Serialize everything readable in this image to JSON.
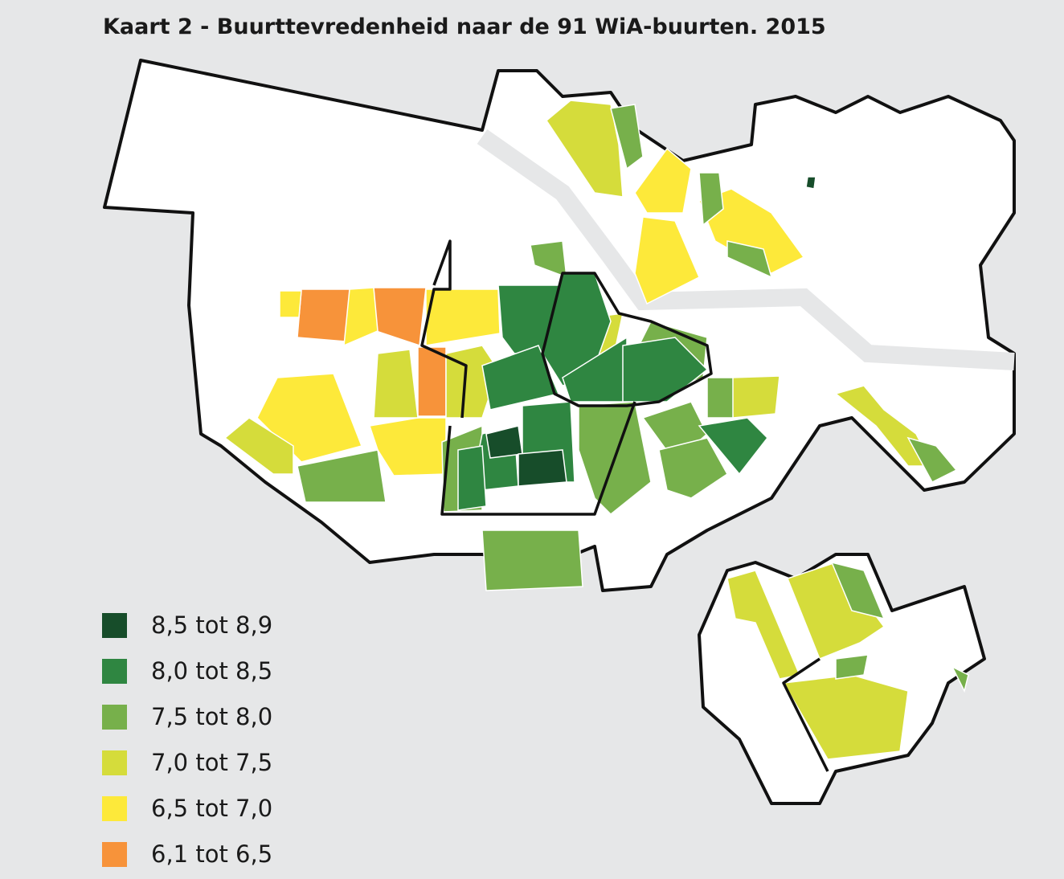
{
  "title": "Kaart 2 - Buurttevredenheid naar de 91 WiA-buurten. 2015",
  "legend": {
    "items": [
      {
        "label": "8,5 tot 8,9",
        "color": "#174d2a"
      },
      {
        "label": "8,0 tot 8,5",
        "color": "#2f8641"
      },
      {
        "label": "7,5 tot 8,0",
        "color": "#77b04b"
      },
      {
        "label": "7,0 tot 7,5",
        "color": "#d5dc3b"
      },
      {
        "label": "6,5 tot 7,0",
        "color": "#fde93a"
      },
      {
        "label": "6,1 tot 6,5",
        "color": "#f7933a"
      }
    ]
  }
}
